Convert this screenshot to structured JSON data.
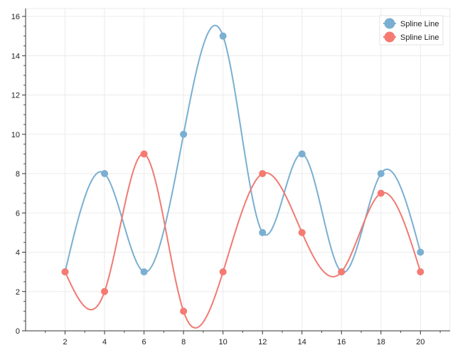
{
  "chart_data": {
    "type": "line",
    "smooth": true,
    "x": [
      2,
      4,
      6,
      8,
      10,
      12,
      14,
      16,
      18,
      20
    ],
    "series": [
      {
        "name": "Spline Line",
        "color": "#7aafd1",
        "marker_fill": "#7aafd1",
        "values": [
          3,
          8,
          3,
          10,
          15,
          5,
          9,
          3,
          8,
          4
        ]
      },
      {
        "name": "Spline Line",
        "color": "#f07a72",
        "marker_fill": "#f77a72",
        "values": [
          3,
          2,
          9,
          1,
          3,
          8,
          5,
          3,
          7,
          3
        ]
      }
    ],
    "xlim": [
      0,
      21.5
    ],
    "ylim": [
      0,
      16.4
    ],
    "x_ticks": [
      "2",
      "4",
      "6",
      "8",
      "10",
      "12",
      "14",
      "16",
      "18",
      "20"
    ],
    "y_ticks": [
      "0",
      "2",
      "4",
      "6",
      "8",
      "10",
      "12",
      "14",
      "16"
    ],
    "grid": true,
    "legend_position": "top-right",
    "title": "",
    "xlabel": "",
    "ylabel": ""
  }
}
